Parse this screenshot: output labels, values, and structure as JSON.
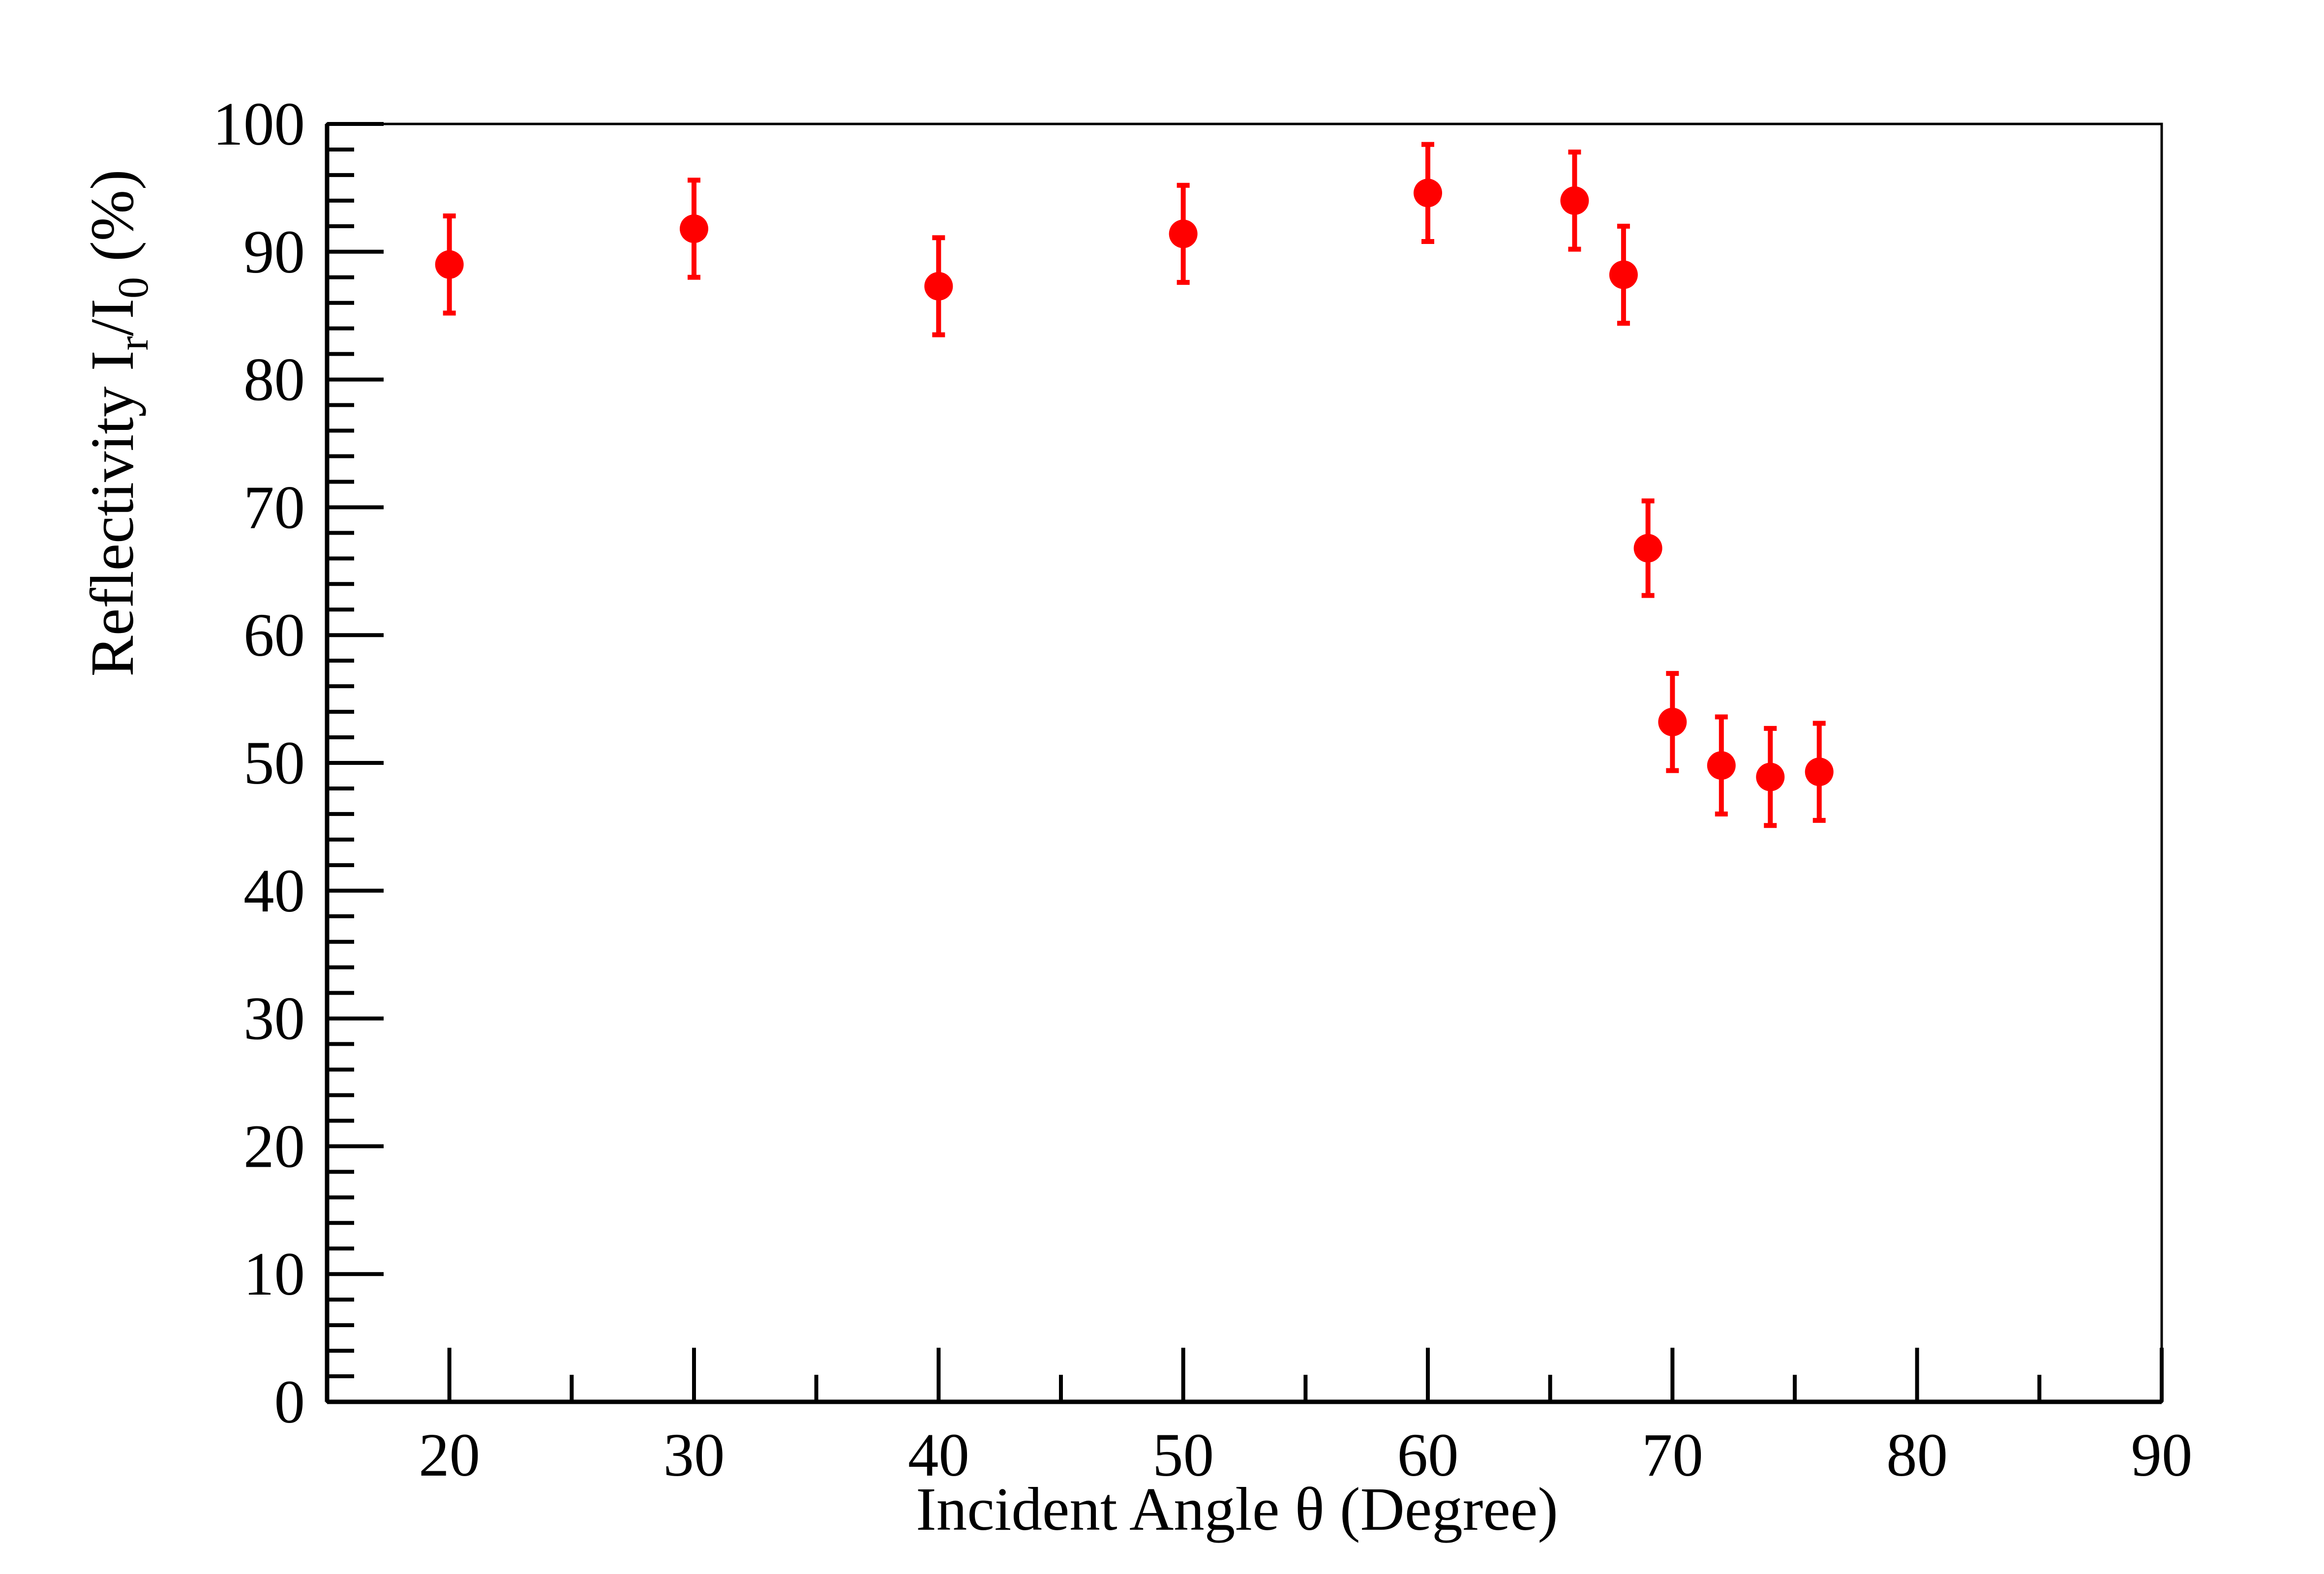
{
  "chart_data": {
    "type": "scatter",
    "title": "",
    "xlabel": "Incident Angle θ (Degree)",
    "ylabel": {
      "prefix": "Reflectivity I",
      "sub1": "r",
      "mid": "/I",
      "sub2": "0",
      "suffix": " (%)"
    },
    "xlim": [
      15,
      90
    ],
    "ylim": [
      0,
      100
    ],
    "x_ticks": [
      20,
      30,
      40,
      50,
      60,
      70,
      80,
      90
    ],
    "y_ticks": [
      0,
      10,
      20,
      30,
      40,
      50,
      60,
      70,
      80,
      90,
      100
    ],
    "grid": false,
    "marker_color": "#ff0000",
    "series": [
      {
        "points": [
          {
            "x": 20,
            "y": 89.0,
            "err": 3.8
          },
          {
            "x": 30,
            "y": 91.8,
            "err": 3.8
          },
          {
            "x": 40,
            "y": 87.3,
            "err": 3.8
          },
          {
            "x": 50,
            "y": 91.4,
            "err": 3.8
          },
          {
            "x": 60,
            "y": 94.6,
            "err": 3.8
          },
          {
            "x": 66,
            "y": 94.0,
            "err": 3.8
          },
          {
            "x": 68,
            "y": 88.2,
            "err": 3.8
          },
          {
            "x": 69,
            "y": 66.8,
            "err": 3.7
          },
          {
            "x": 70,
            "y": 53.2,
            "err": 3.8
          },
          {
            "x": 72,
            "y": 49.8,
            "err": 3.8
          },
          {
            "x": 74,
            "y": 48.9,
            "err": 3.8
          },
          {
            "x": 76,
            "y": 49.3,
            "err": 3.8
          }
        ]
      }
    ]
  }
}
